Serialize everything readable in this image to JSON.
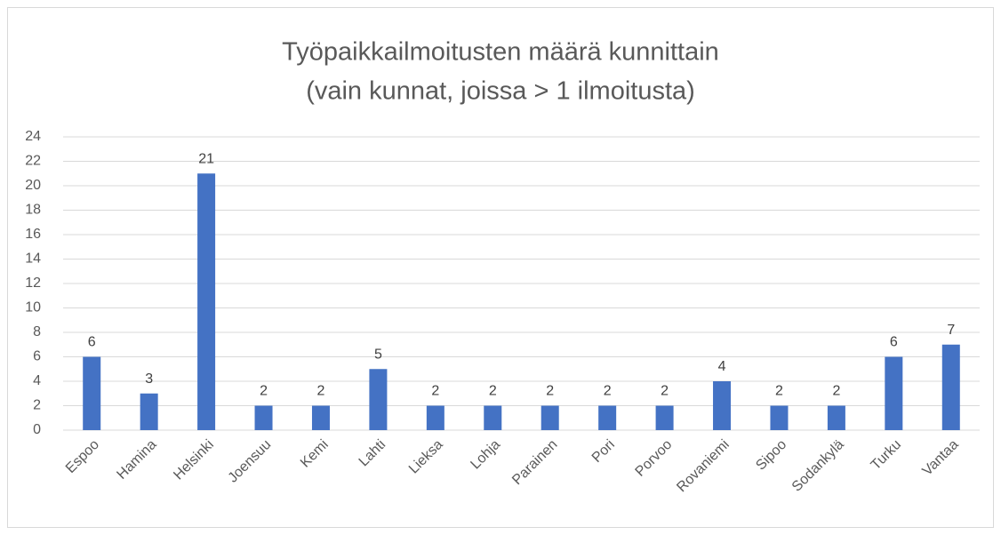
{
  "chart_data": {
    "type": "bar",
    "title": "Työpaikkailmoitusten määrä kunnittain",
    "subtitle": "(vain kunnat, joissa > 1 ilmoitusta)",
    "categories": [
      "Espoo",
      "Hamina",
      "Helsinki",
      "Joensuu",
      "Kemi",
      "Lahti",
      "Lieksa",
      "Lohja",
      "Parainen",
      "Pori",
      "Porvoo",
      "Rovaniemi",
      "Sipoo",
      "Sodankylä",
      "Turku",
      "Vantaa"
    ],
    "values": [
      6,
      3,
      21,
      2,
      2,
      5,
      2,
      2,
      2,
      2,
      2,
      4,
      2,
      2,
      6,
      7
    ],
    "color": "#4472c4",
    "ylim": [
      0,
      24
    ],
    "yticks": [
      0,
      2,
      4,
      6,
      8,
      10,
      12,
      14,
      16,
      18,
      20,
      22,
      24
    ],
    "grid": true,
    "data_labels": true
  }
}
